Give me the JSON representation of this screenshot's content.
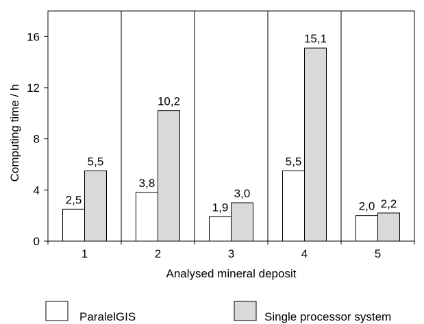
{
  "chart_data": {
    "type": "bar",
    "title": "",
    "xlabel": "Analysed mineral deposit",
    "ylabel": "Computing time / h",
    "categories": [
      "1",
      "2",
      "3",
      "4",
      "5"
    ],
    "series": [
      {
        "name": "ParalelGIS",
        "values": [
          2.5,
          3.8,
          1.9,
          5.5,
          2.0
        ],
        "labels": [
          "2,5",
          "3,8",
          "1,9",
          "5,5",
          "2,0"
        ],
        "color": "#ffffff"
      },
      {
        "name": "Single processor system",
        "values": [
          5.5,
          10.2,
          3.0,
          15.1,
          2.2
        ],
        "labels": [
          "5,5",
          "10,2",
          "3,0",
          "15,1",
          "2,2"
        ],
        "color": "#d9d9d9"
      }
    ],
    "ylim": [
      0,
      18
    ],
    "yticks": [
      0,
      4,
      8,
      12,
      16
    ],
    "grid": false,
    "category_separators": true,
    "legend_position": "bottom"
  }
}
